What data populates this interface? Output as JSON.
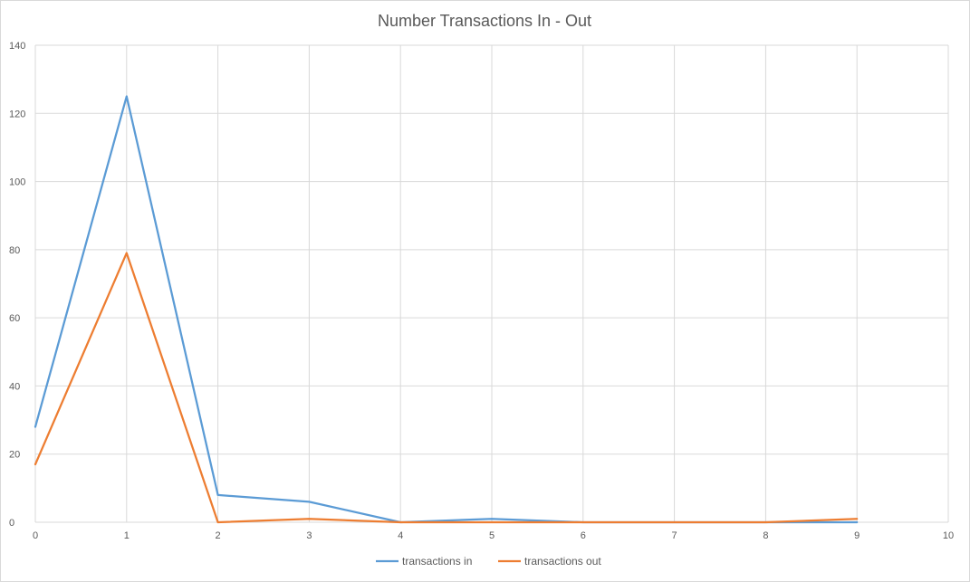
{
  "chart_data": {
    "type": "line",
    "title": "Number Transactions In - Out",
    "xlabel": "",
    "ylabel": "",
    "xlim": [
      0,
      10
    ],
    "ylim": [
      0,
      140
    ],
    "x_ticks": [
      0,
      1,
      2,
      3,
      4,
      5,
      6,
      7,
      8,
      9,
      10
    ],
    "y_ticks": [
      0,
      20,
      40,
      60,
      80,
      100,
      120,
      140
    ],
    "grid": true,
    "legend_position": "bottom",
    "series": [
      {
        "name": "transactions in",
        "color": "#5b9bd5",
        "x": [
          0,
          1,
          2,
          3,
          4,
          5,
          6,
          7,
          8,
          9
        ],
        "values": [
          28,
          125,
          8,
          6,
          0,
          1,
          0,
          0,
          0,
          0
        ]
      },
      {
        "name": "transactions out",
        "color": "#ed7d31",
        "x": [
          0,
          1,
          2,
          3,
          4,
          5,
          6,
          7,
          8,
          9
        ],
        "values": [
          17,
          79,
          0,
          1,
          0,
          0,
          0,
          0,
          0,
          1
        ]
      }
    ]
  }
}
